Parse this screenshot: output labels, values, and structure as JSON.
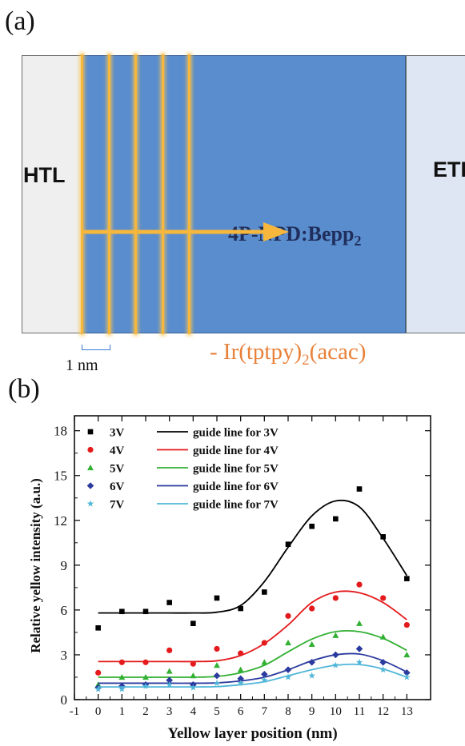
{
  "panel_a": {
    "label": "(a)",
    "htl_label": "HTL",
    "etl_label": "ETL",
    "eml_label_main": "4P-NPD:Bepp",
    "eml_label_sub": "2",
    "scale_label": "1 nm",
    "dopant_label_prefix": "- Ir(tptpy)",
    "dopant_label_sub": "2",
    "dopant_label_suffix": "(acac)",
    "colors": {
      "htl": "#efefef",
      "eml": "#5a8dcd",
      "etl": "#dde6f2",
      "yellow_layer": "#f6b73c",
      "dopant_text": "#e8813a"
    }
  },
  "panel_b": {
    "label": "(b)"
  },
  "chart_data": {
    "type": "scatter",
    "xlabel": "Yellow layer position (nm)",
    "ylabel": "Relative yellow intensity (a.u.)",
    "xlim": [
      -1,
      14
    ],
    "ylim": [
      0,
      19
    ],
    "xticks": [
      -1,
      0,
      1,
      2,
      3,
      4,
      5,
      6,
      7,
      8,
      9,
      10,
      11,
      12,
      13
    ],
    "yticks": [
      0,
      3,
      6,
      9,
      12,
      15,
      18
    ],
    "legend_position": "top-left",
    "x": [
      0,
      1,
      2,
      3,
      4,
      5,
      6,
      7,
      8,
      9,
      10,
      11,
      12,
      13
    ],
    "series": [
      {
        "name": "3V",
        "marker": "square",
        "color": "#000000",
        "values": [
          4.8,
          5.9,
          5.9,
          6.5,
          5.1,
          6.8,
          6.1,
          7.2,
          10.4,
          11.6,
          12.1,
          14.1,
          10.9,
          8.1
        ],
        "guide_name": "guide line for 3V",
        "guide": [
          5.8,
          5.8,
          5.8,
          5.8,
          5.8,
          5.85,
          6.3,
          7.9,
          10.2,
          12.3,
          13.3,
          12.9,
          10.8,
          8.3
        ]
      },
      {
        "name": "4V",
        "marker": "circle",
        "color": "#e41a1c",
        "values": [
          1.8,
          2.5,
          2.5,
          3.3,
          2.4,
          3.4,
          3.1,
          3.8,
          5.6,
          6.1,
          6.8,
          7.7,
          6.8,
          5.0
        ],
        "guide_name": "guide line for 4V",
        "guide": [
          2.55,
          2.55,
          2.55,
          2.55,
          2.55,
          2.6,
          2.95,
          3.75,
          5.0,
          6.5,
          7.2,
          7.15,
          6.5,
          5.35
        ]
      },
      {
        "name": "5V",
        "marker": "triangle",
        "color": "#32b032",
        "values": [
          1.0,
          1.5,
          1.5,
          1.9,
          1.6,
          2.3,
          2.0,
          2.5,
          3.8,
          3.7,
          4.3,
          5.1,
          4.2,
          3.0
        ],
        "guide_name": "guide line for 5V",
        "guide": [
          1.5,
          1.5,
          1.5,
          1.5,
          1.5,
          1.55,
          1.8,
          2.3,
          3.2,
          4.05,
          4.55,
          4.55,
          4.1,
          3.3
        ]
      },
      {
        "name": "6V",
        "marker": "diamond",
        "color": "#2b3a9e",
        "values": [
          0.8,
          0.9,
          1.0,
          1.3,
          1.0,
          1.6,
          1.4,
          1.7,
          2.0,
          2.5,
          3.0,
          3.4,
          2.5,
          1.8
        ],
        "guide_name": "guide line for 6V",
        "guide": [
          1.1,
          1.1,
          1.1,
          1.1,
          1.1,
          1.12,
          1.25,
          1.5,
          2.0,
          2.6,
          3.0,
          3.05,
          2.6,
          1.85
        ]
      },
      {
        "name": "7V",
        "marker": "star",
        "color": "#4fb6d8",
        "values": [
          0.7,
          0.7,
          0.9,
          1.0,
          0.8,
          1.1,
          1.1,
          1.3,
          1.5,
          1.6,
          2.3,
          2.5,
          2.0,
          1.5
        ],
        "guide_name": "guide line for 7V",
        "guide": [
          0.85,
          0.85,
          0.85,
          0.85,
          0.85,
          0.87,
          1.0,
          1.2,
          1.6,
          2.0,
          2.3,
          2.35,
          2.05,
          1.5
        ]
      }
    ]
  }
}
